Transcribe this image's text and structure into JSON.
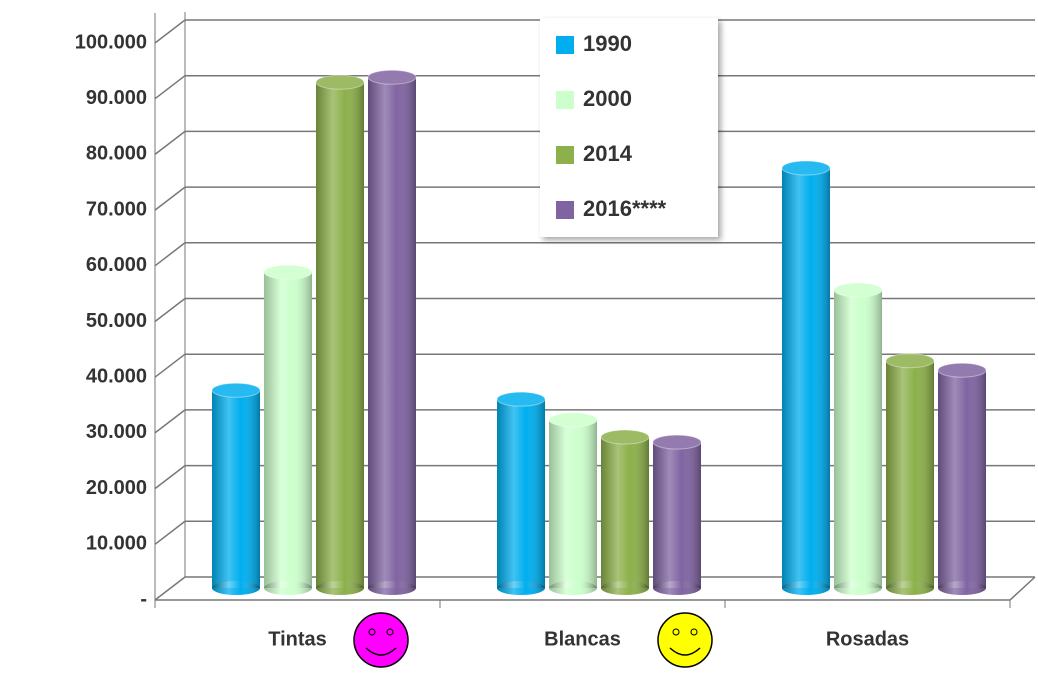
{
  "chart_data": {
    "type": "bar3d",
    "categories": [
      "Tintas",
      "Blancas",
      "Rosadas"
    ],
    "series": [
      {
        "name": "1990",
        "color": "#00aeef",
        "values": [
          35500,
          33900,
          75400
        ]
      },
      {
        "name": "2000",
        "color": "#ccffcc",
        "values": [
          56700,
          30200,
          53500
        ]
      },
      {
        "name": "2014",
        "color": "#8cb04a",
        "values": [
          90800,
          27100,
          40800
        ]
      },
      {
        "name": "2016****",
        "color": "#8064a2",
        "values": [
          91700,
          26200,
          39100
        ]
      }
    ],
    "ylim": [
      0,
      100000
    ],
    "yticks": [
      {
        "value": 0,
        "label": "-"
      },
      {
        "value": 10000,
        "label": "10.000"
      },
      {
        "value": 20000,
        "label": "20.000"
      },
      {
        "value": 30000,
        "label": "30.000"
      },
      {
        "value": 40000,
        "label": "40.000"
      },
      {
        "value": 50000,
        "label": "50.000"
      },
      {
        "value": 60000,
        "label": "60.000"
      },
      {
        "value": 70000,
        "label": "70.000"
      },
      {
        "value": 80000,
        "label": "80.000"
      },
      {
        "value": 90000,
        "label": "90.000"
      },
      {
        "value": 100000,
        "label": "100.000"
      }
    ],
    "grid": true,
    "legend": "top-center"
  }
}
